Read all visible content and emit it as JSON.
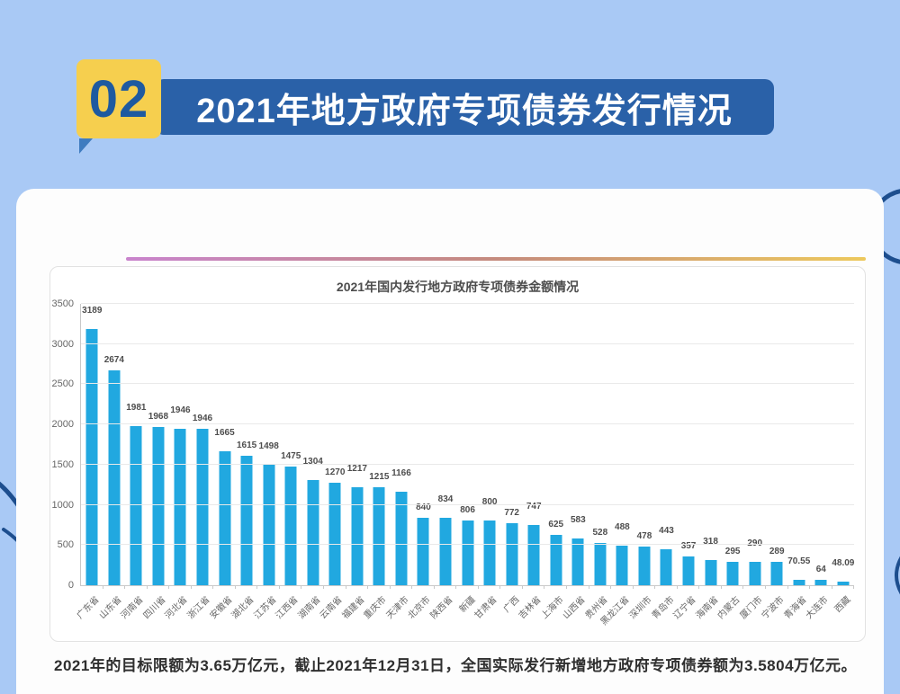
{
  "header": {
    "badge": "02",
    "title": "2021年地方政府专项债券发行情况"
  },
  "chart_data": {
    "type": "bar",
    "title": "2021年国内发行地方政府专项债券金额情况",
    "categories": [
      "广东省",
      "山东省",
      "河南省",
      "四川省",
      "河北省",
      "浙江省",
      "安徽省",
      "湖北省",
      "江苏省",
      "江西省",
      "湖南省",
      "云南省",
      "福建省",
      "重庆市",
      "天津市",
      "北京市",
      "陕西省",
      "新疆",
      "甘肃省",
      "广西",
      "吉林省",
      "上海市",
      "山西省",
      "贵州省",
      "黑龙江省",
      "深圳市",
      "青岛市",
      "辽宁省",
      "海南省",
      "内蒙古",
      "厦门市",
      "宁波市",
      "青海省",
      "大连市",
      "西藏"
    ],
    "values": [
      3189,
      2674,
      1981,
      1968,
      1946,
      1946,
      1665,
      1615,
      1498,
      1475,
      1304,
      1270,
      1217,
      1215,
      1166,
      840,
      834,
      806,
      800,
      772,
      747,
      625,
      583,
      528,
      488,
      478,
      443,
      357,
      318,
      295,
      290,
      289,
      70.55,
      64,
      48.09
    ],
    "xlabel": "",
    "ylabel": "",
    "ylim": [
      0,
      3500
    ],
    "yticks": [
      0,
      500,
      1000,
      1500,
      2000,
      2500,
      3000,
      3500
    ],
    "grid": true,
    "legend_position": "none",
    "bar_color": "#21a8e0"
  },
  "caption": "2021年的目标限额为3.65万亿元，截止2021年12月31日，全国实际发行新增地方政府专项债券额为3.5804万亿元。",
  "colors": {
    "background": "#a9c9f5",
    "banner_blue": "#2a61a8",
    "badge_yellow": "#f6cf4e",
    "badge_text_blue": "#1e5aa0",
    "bar_color": "#21a8e0",
    "decor_arc": "#1d4e8e",
    "gradient_left": "#c984cd",
    "gradient_mid": "#c58b7e",
    "gradient_right": "#edc95d"
  }
}
